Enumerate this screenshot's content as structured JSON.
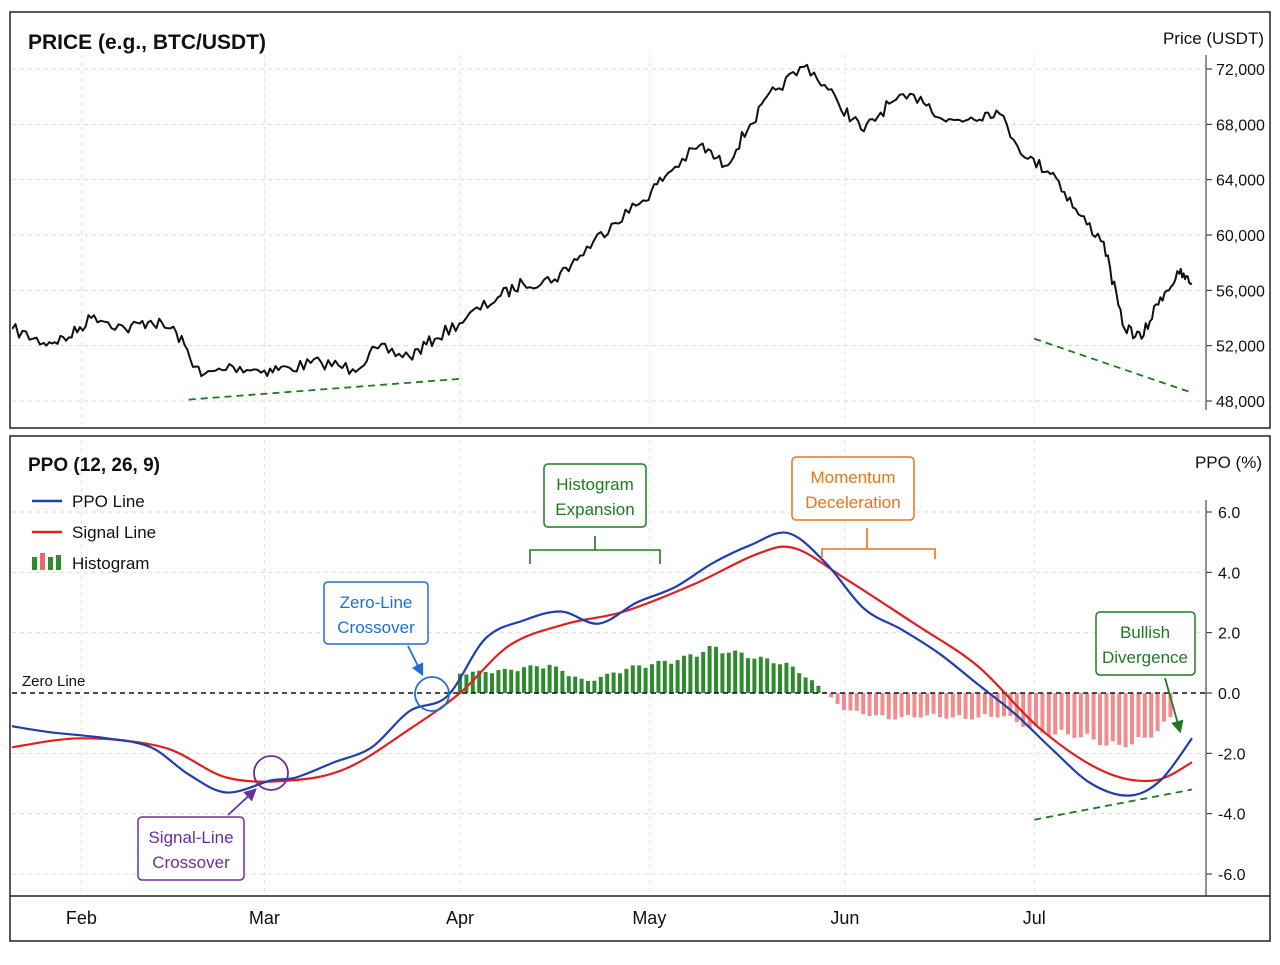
{
  "price_panel": {
    "title": "PRICE (e.g., BTC/USDT)",
    "axis_label": "Price (USDT)",
    "y_ticks": [
      "72,000",
      "68,000",
      "64,000",
      "60,000",
      "56,000",
      "52,000",
      "48,000"
    ]
  },
  "ppo_panel": {
    "title": "PPO (12, 26, 9)",
    "axis_label": "PPO (%)",
    "y_ticks": [
      "6.0",
      "4.0",
      "2.0",
      "0.0",
      "-2.0",
      "-4.0",
      "-6.0"
    ],
    "zero_line_label": "Zero Line",
    "legend": {
      "ppo": "PPO Line",
      "signal": "Signal Line",
      "histogram": "Histogram"
    }
  },
  "x_axis": {
    "months": [
      "Feb",
      "Mar",
      "Apr",
      "May",
      "Jun",
      "Jul"
    ]
  },
  "annotations": {
    "histogram_expansion": [
      "Histogram",
      "Expansion"
    ],
    "momentum_deceleration": [
      "Momentum",
      "Deceleration"
    ],
    "zero_line_crossover": [
      "Zero-Line",
      "Crossover"
    ],
    "signal_line_crossover": [
      "Signal-Line",
      "Crossover"
    ],
    "bullish_divergence": [
      "Bullish",
      "Divergence"
    ]
  },
  "colors": {
    "price": "#111111",
    "ppo": "#1f3fae",
    "signal": "#e02020",
    "hist_positive": "#2e8b2e",
    "hist_negative": "#f28b8b",
    "trend": "#1f7a1f",
    "annot_green": "#1f7a1f",
    "annot_orange": "#e8731a",
    "annot_blue": "#1f6fd1",
    "annot_purple": "#6a2e9a"
  },
  "chart_data": [
    {
      "type": "line",
      "title": "PRICE (e.g., BTC/USDT)",
      "ylabel": "Price (USDT)",
      "ylim": [
        47500,
        73500
      ],
      "x_range": [
        "Jan 21",
        "Jul 26"
      ],
      "series": [
        {
          "values": [
            [
              "Jan 21",
              53200
            ],
            [
              "Jan 26",
              52200
            ],
            [
              "Jan 30",
              52600
            ],
            [
              "Feb 3",
              54200
            ],
            [
              "Feb 8",
              53200
            ],
            [
              "Feb 12",
              53800
            ],
            [
              "Feb 16",
              53000
            ],
            [
              "Feb 20",
              49800
            ],
            [
              "Feb 25",
              50500
            ],
            [
              "Mar 1",
              50200
            ],
            [
              "Mar 5",
              50400
            ],
            [
              "Mar 10",
              50800
            ],
            [
              "Mar 15",
              50300
            ],
            [
              "Mar 19",
              51800
            ],
            [
              "Mar 24",
              51200
            ],
            [
              "Mar 28",
              52500
            ],
            [
              "Apr 2",
              54000
            ],
            [
              "Apr 7",
              55500
            ],
            [
              "Apr 11",
              56500
            ],
            [
              "Apr 16",
              56800
            ],
            [
              "Apr 20",
              58500
            ],
            [
              "Apr 25",
              60800
            ],
            [
              "Apr 30",
              62500
            ],
            [
              "May 4",
              64500
            ],
            [
              "May 9",
              66500
            ],
            [
              "May 13",
              65000
            ],
            [
              "May 17",
              68000
            ],
            [
              "May 21",
              70500
            ],
            [
              "May 26",
              72300
            ],
            [
              "May 31",
              69500
            ],
            [
              "Jun 4",
              67500
            ],
            [
              "Jun 8",
              69500
            ],
            [
              "Jun 13",
              70000
            ],
            [
              "Jun 17",
              68200
            ],
            [
              "Jun 21",
              68500
            ],
            [
              "Jun 25",
              69000
            ],
            [
              "Jun 30",
              65500
            ],
            [
              "Jul 4",
              64500
            ],
            [
              "Jul 8",
              61500
            ],
            [
              "Jul 12",
              59500
            ],
            [
              "Jul 15",
              53500
            ],
            [
              "Jul 18",
              52500
            ],
            [
              "Jul 21",
              55500
            ],
            [
              "Jul 24",
              57200
            ],
            [
              "Jul 26",
              56500
            ]
          ]
        }
      ],
      "trendlines": [
        {
          "from": [
            "Feb 18",
            48100
          ],
          "to": [
            "Apr 1",
            49600
          ]
        },
        {
          "from": [
            "Jul 1",
            52500
          ],
          "to": [
            "Jul 26",
            48600
          ]
        }
      ],
      "grid": true
    },
    {
      "type": "line",
      "title": "PPO (12, 26, 9)",
      "ylabel": "PPO (%)",
      "ylim": [
        -6.6,
        6.6
      ],
      "x_range": [
        "Jan 21",
        "Jul 26"
      ],
      "series": [
        {
          "name": "PPO Line",
          "values": [
            [
              "Jan 21",
              -1.1
            ],
            [
              "Jan 27",
              -1.3
            ],
            [
              "Feb 5",
              -1.5
            ],
            [
              "Feb 12",
              -1.8
            ],
            [
              "Feb 18",
              -2.7
            ],
            [
              "Feb 24",
              -3.3
            ],
            [
              "Mar 2",
              -2.9
            ],
            [
              "Mar 6",
              -2.8
            ],
            [
              "Mar 12",
              -2.3
            ],
            [
              "Mar 18",
              -1.8
            ],
            [
              "Mar 24",
              -0.6
            ],
            [
              "Mar 30",
              -0.1
            ],
            [
              "Apr 5",
              1.8
            ],
            [
              "Apr 11",
              2.4
            ],
            [
              "Apr 17",
              2.7
            ],
            [
              "Apr 23",
              2.3
            ],
            [
              "Apr 29",
              3.0
            ],
            [
              "May 5",
              3.5
            ],
            [
              "May 11",
              4.3
            ],
            [
              "May 17",
              4.9
            ],
            [
              "May 23",
              5.3
            ],
            [
              "May 29",
              4.3
            ],
            [
              "Jun 4",
              2.8
            ],
            [
              "Jun 10",
              2.1
            ],
            [
              "Jun 16",
              1.3
            ],
            [
              "Jun 22",
              0.3
            ],
            [
              "Jun 28",
              -0.7
            ],
            [
              "Jul 4",
              -1.9
            ],
            [
              "Jul 10",
              -3.0
            ],
            [
              "Jul 16",
              -3.4
            ],
            [
              "Jul 21",
              -2.9
            ],
            [
              "Jul 26",
              -1.5
            ]
          ]
        },
        {
          "name": "Signal Line",
          "values": [
            [
              "Jan 21",
              -1.8
            ],
            [
              "Feb 1",
              -1.5
            ],
            [
              "Feb 14",
              -1.8
            ],
            [
              "Feb 24",
              -2.8
            ],
            [
              "Mar 5",
              -2.9
            ],
            [
              "Mar 14",
              -2.5
            ],
            [
              "Mar 24",
              -1.2
            ],
            [
              "Apr 1",
              0.0
            ],
            [
              "Apr 9",
              1.6
            ],
            [
              "Apr 18",
              2.3
            ],
            [
              "Apr 27",
              2.7
            ],
            [
              "May 8",
              3.6
            ],
            [
              "May 18",
              4.6
            ],
            [
              "May 24",
              4.8
            ],
            [
              "Jun 1",
              3.8
            ],
            [
              "Jun 12",
              2.3
            ],
            [
              "Jun 22",
              0.9
            ],
            [
              "Jul 2",
              -1.2
            ],
            [
              "Jul 12",
              -2.6
            ],
            [
              "Jul 20",
              -2.9
            ],
            [
              "Jul 26",
              -2.3
            ]
          ]
        },
        {
          "name": "Histogram",
          "values": [
            [
              "Apr 1",
              0.7
            ],
            [
              "Apr 8",
              0.8
            ],
            [
              "Apr 15",
              1.0
            ],
            [
              "Apr 21",
              0.4
            ],
            [
              "Apr 28",
              0.9
            ],
            [
              "May 6",
              1.2
            ],
            [
              "May 11",
              1.6
            ],
            [
              "May 17",
              1.3
            ],
            [
              "May 23",
              1.0
            ],
            [
              "May 27",
              0.4
            ],
            [
              "Jun 1",
              -0.6
            ],
            [
              "Jun 8",
              -0.9
            ],
            [
              "Jun 14",
              -0.8
            ],
            [
              "Jun 20",
              -0.9
            ],
            [
              "Jun 26",
              -0.8
            ],
            [
              "Jul 2",
              -1.4
            ],
            [
              "Jul 8",
              -1.5
            ],
            [
              "Jul 14",
              -1.9
            ],
            [
              "Jul 19",
              -1.6
            ],
            [
              "Jul 23",
              -0.8
            ]
          ]
        }
      ],
      "trendlines": [
        {
          "from": [
            "Jul 1",
            -4.2
          ],
          "to": [
            "Jul 26",
            -3.2
          ]
        }
      ],
      "reference_lines": [
        {
          "y": 0,
          "label": "Zero Line"
        }
      ],
      "legend_position": "top-left",
      "grid": true
    }
  ]
}
